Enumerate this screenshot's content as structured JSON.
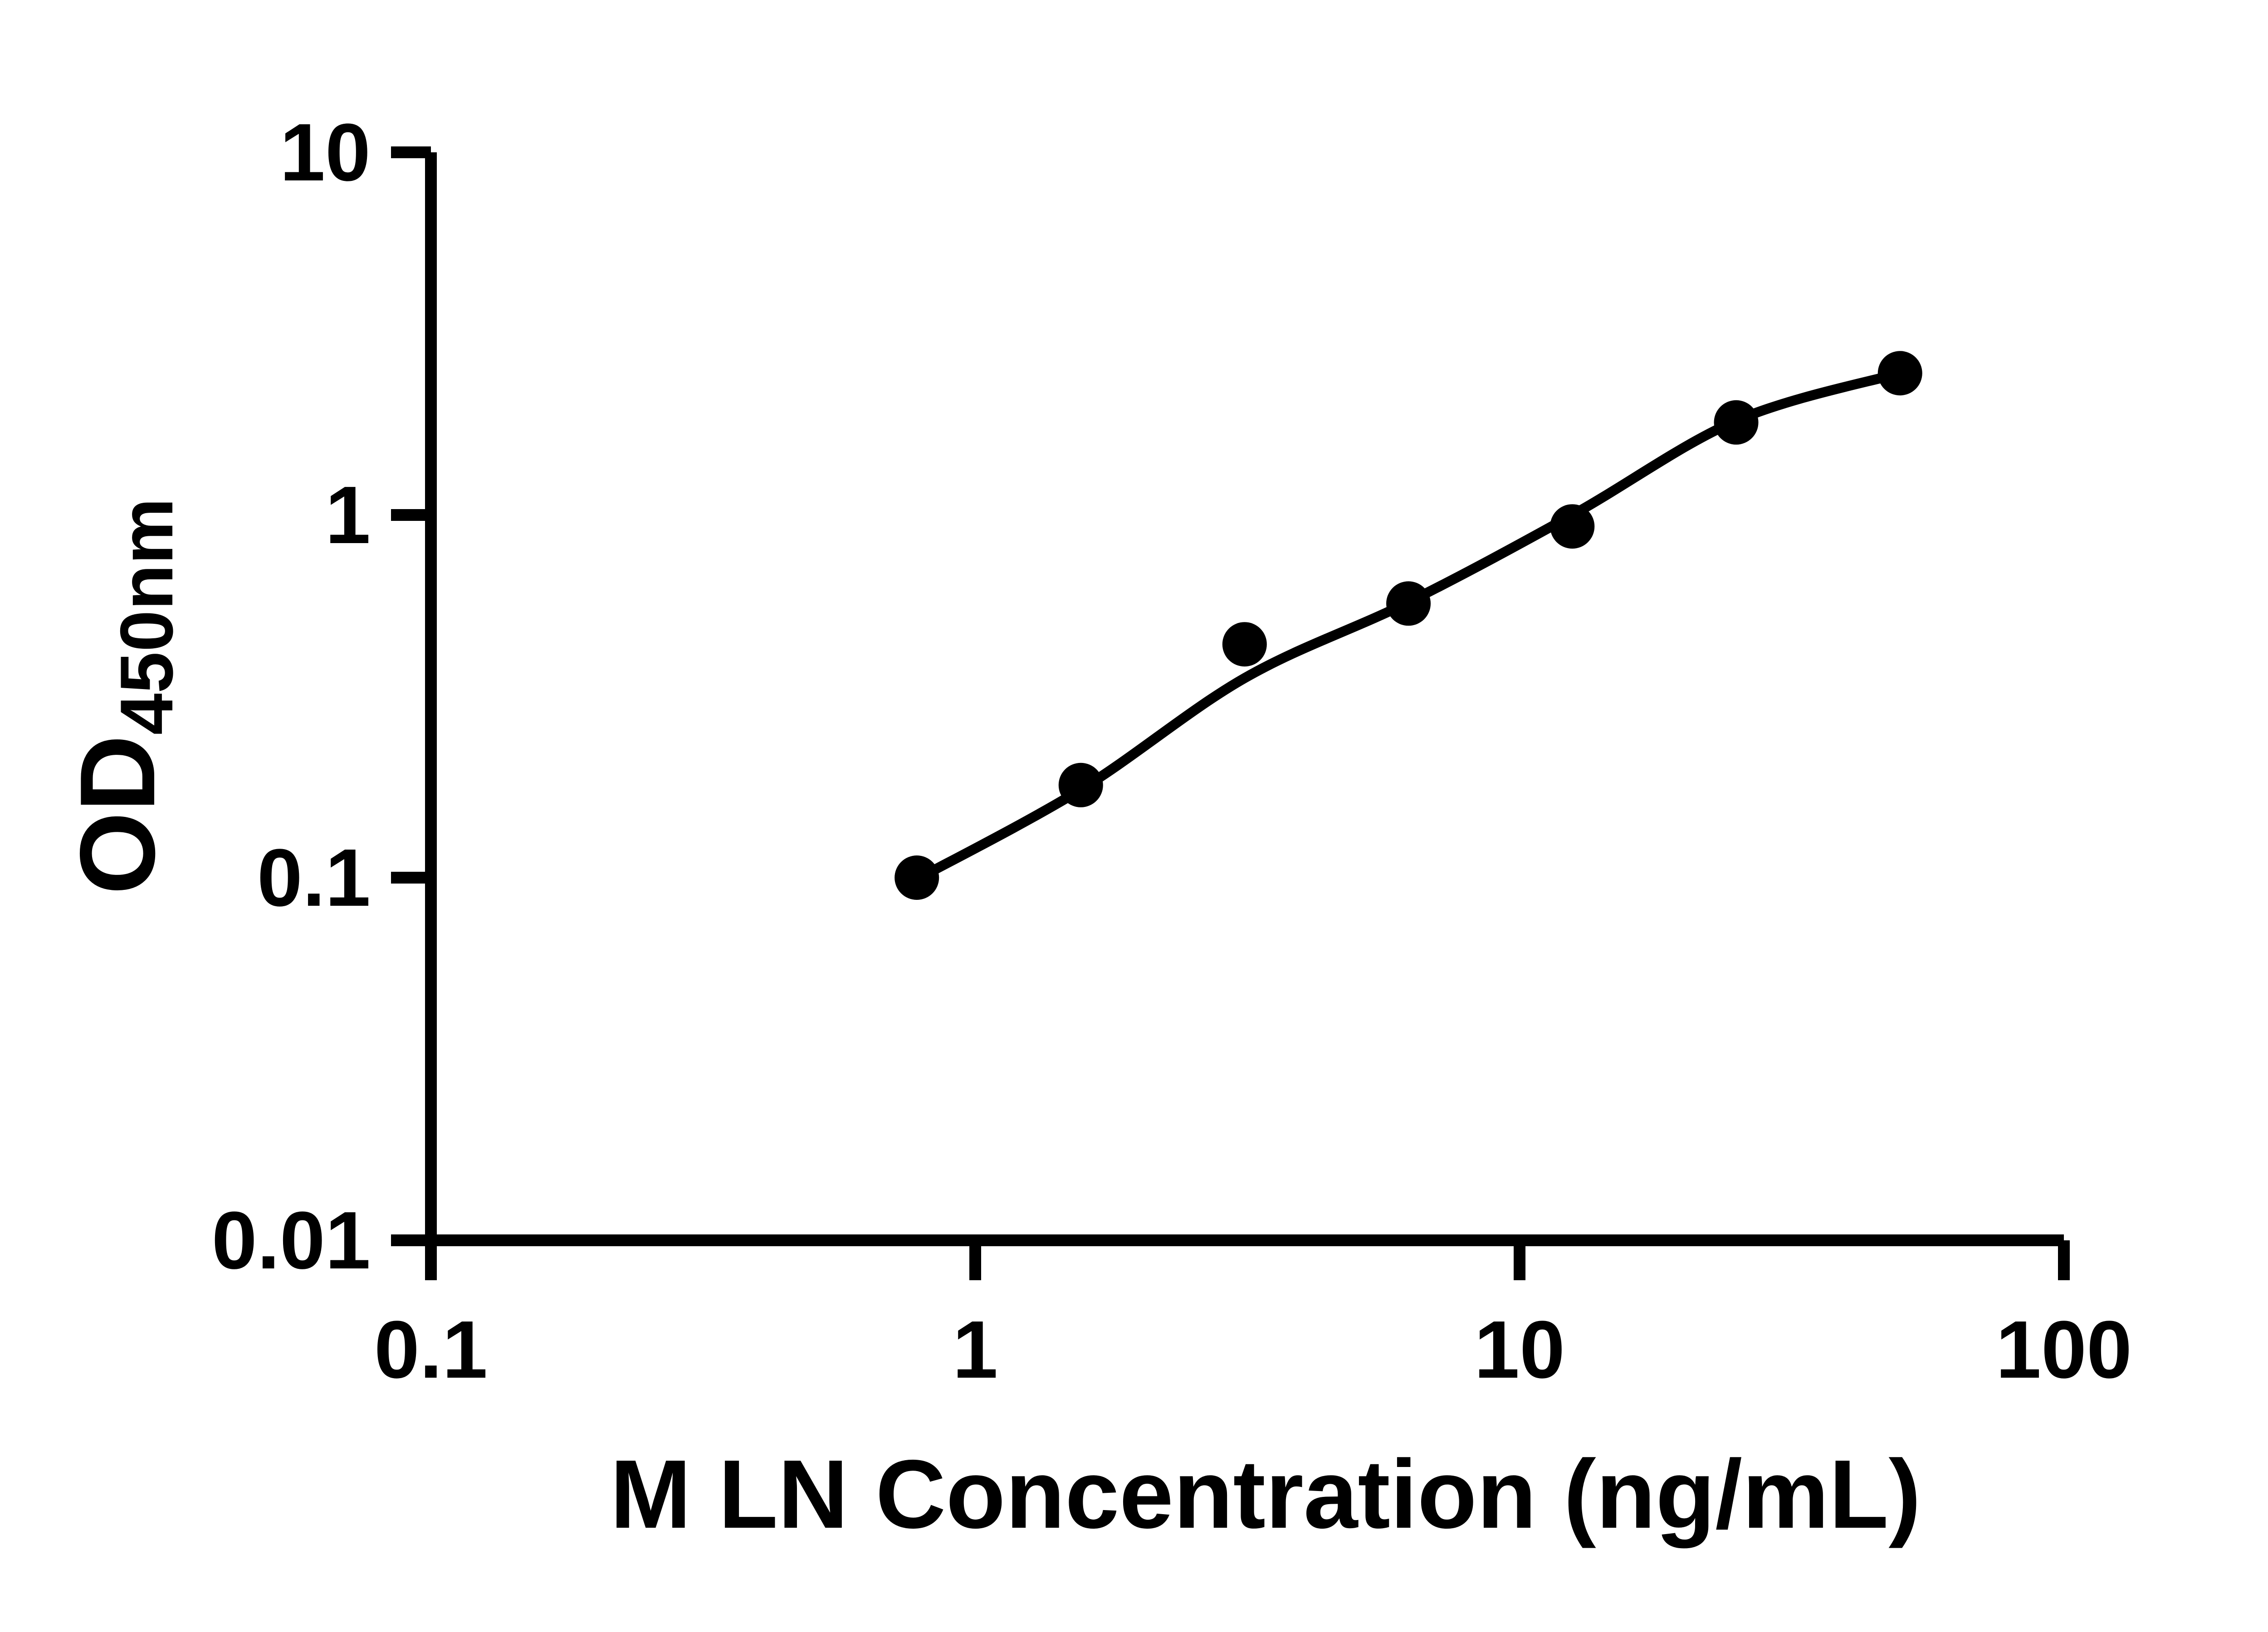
{
  "chart_data": {
    "type": "scatter",
    "title": "",
    "xlabel": "M LN Concentration (ng/mL)",
    "ylabel": "OD450nm",
    "ylabel_main": "OD",
    "ylabel_sub": "450nm",
    "x_scale": "log",
    "y_scale": "log",
    "xlim": [
      0.1,
      100
    ],
    "ylim": [
      0.01,
      10
    ],
    "grid": false,
    "legend_position": "none",
    "background_color": "#ffffff",
    "axis_color": "#000000",
    "line_color": "#000000",
    "marker_color": "#000000",
    "x_ticks": [
      {
        "v": 0.1,
        "label": "0.1"
      },
      {
        "v": 1,
        "label": "1"
      },
      {
        "v": 10,
        "label": "10"
      },
      {
        "v": 100,
        "label": "100"
      }
    ],
    "y_ticks": [
      {
        "v": 0.01,
        "label": "0.01"
      },
      {
        "v": 0.1,
        "label": "0.1"
      },
      {
        "v": 1,
        "label": "1"
      },
      {
        "v": 10,
        "label": "10"
      }
    ],
    "points": [
      {
        "x": 0.781,
        "y": 0.1
      },
      {
        "x": 1.563,
        "y": 0.18
      },
      {
        "x": 3.125,
        "y": 0.44
      },
      {
        "x": 6.25,
        "y": 0.57
      },
      {
        "x": 12.5,
        "y": 0.93
      },
      {
        "x": 25,
        "y": 1.8
      },
      {
        "x": 50,
        "y": 2.46
      }
    ],
    "fit_curve": [
      {
        "x": 0.781,
        "y": 0.099
      },
      {
        "x": 1.563,
        "y": 0.175
      },
      {
        "x": 3.125,
        "y": 0.355
      },
      {
        "x": 6.25,
        "y": 0.575
      },
      {
        "x": 12.5,
        "y": 1.0
      },
      {
        "x": 25,
        "y": 1.82
      },
      {
        "x": 50,
        "y": 2.46
      }
    ]
  }
}
